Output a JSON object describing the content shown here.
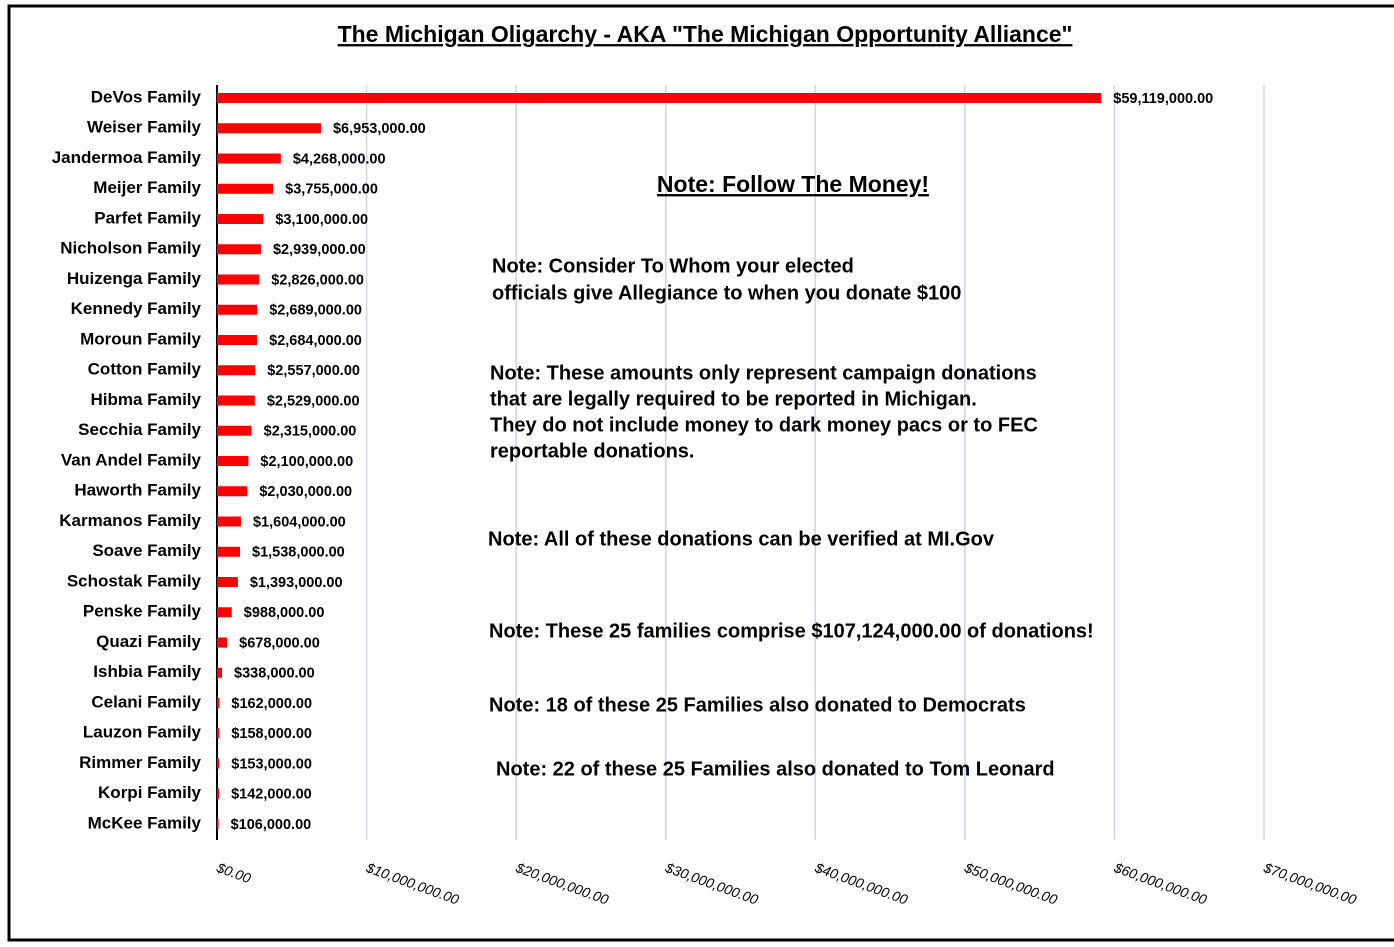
{
  "chart_data": {
    "type": "hbar",
    "title": "The Michigan Oligarchy - AKA \"The Michigan Opportunity Alliance\"",
    "categories": [
      "DeVos Family",
      "Weiser Family",
      "Jandermoa Family",
      "Meijer Family",
      "Parfet Family",
      "Nicholson Family",
      "Huizenga Family",
      "Kennedy Family",
      "Moroun Family",
      "Cotton Family",
      "Hibma Family",
      "Secchia Family",
      "Van Andel Family",
      "Haworth Family",
      "Karmanos Family",
      "Soave Family",
      "Schostak Family",
      "Penske Family",
      "Quazi Family",
      "Ishbia Family",
      "Celani Family",
      "Lauzon Family",
      "Rimmer Family",
      "Korpi Family",
      "McKee Family"
    ],
    "values": [
      59119000,
      6953000,
      4268000,
      3755000,
      3100000,
      2939000,
      2826000,
      2689000,
      2684000,
      2557000,
      2529000,
      2315000,
      2100000,
      2030000,
      1604000,
      1538000,
      1393000,
      988000,
      678000,
      338000,
      162000,
      158000,
      153000,
      142000,
      106000
    ],
    "value_labels": [
      "$59,119,000.00",
      "$6,953,000.00",
      "$4,268,000.00",
      "$3,755,000.00",
      "$3,100,000.00",
      "$2,939,000.00",
      "$2,826,000.00",
      "$2,689,000.00",
      "$2,684,000.00",
      "$2,557,000.00",
      "$2,529,000.00",
      "$2,315,000.00",
      "$2,100,000.00",
      "$2,030,000.00",
      "$1,604,000.00",
      "$1,538,000.00",
      "$1,393,000.00",
      "$988,000.00",
      "$678,000.00",
      "$338,000.00",
      "$162,000.00",
      "$158,000.00",
      "$153,000.00",
      "$142,000.00",
      "$106,000.00"
    ],
    "color": "#ff0000",
    "xlim": [
      0,
      70000000
    ],
    "xticks": [
      {
        "value": 0,
        "label": "$0.00"
      },
      {
        "value": 10000000,
        "label": "$10,000,000.00"
      },
      {
        "value": 20000000,
        "label": "$20,000,000.00"
      },
      {
        "value": 30000000,
        "label": "$30,000,000.00"
      },
      {
        "value": 40000000,
        "label": "$40,000,000.00"
      },
      {
        "value": 50000000,
        "label": "$50,000,000.00"
      },
      {
        "value": 60000000,
        "label": "$60,000,000.00"
      },
      {
        "value": 70000000,
        "label": "$70,000,000.00"
      }
    ],
    "grid": true,
    "annotations": [
      [
        "Note: Follow The Money!"
      ],
      [
        "Note: Consider To Whom your elected",
        "officials  give Allegiance to when you donate $100"
      ],
      [
        "Note: These amounts only represent campaign donations",
        " that are legally required to be reported in Michigan.",
        "They do not include money to dark money pacs or to FEC",
        "reportable donations."
      ],
      [
        "Note: All of these donations can be verified at MI.Gov"
      ],
      [
        "Note: These 25 families comprise $107,124,000.00 of donations!"
      ],
      [
        "Note: 18 of these 25 Families also donated to Democrats"
      ],
      [
        "Note: 22 of these 25 Families also donated to Tom Leonard"
      ]
    ]
  }
}
